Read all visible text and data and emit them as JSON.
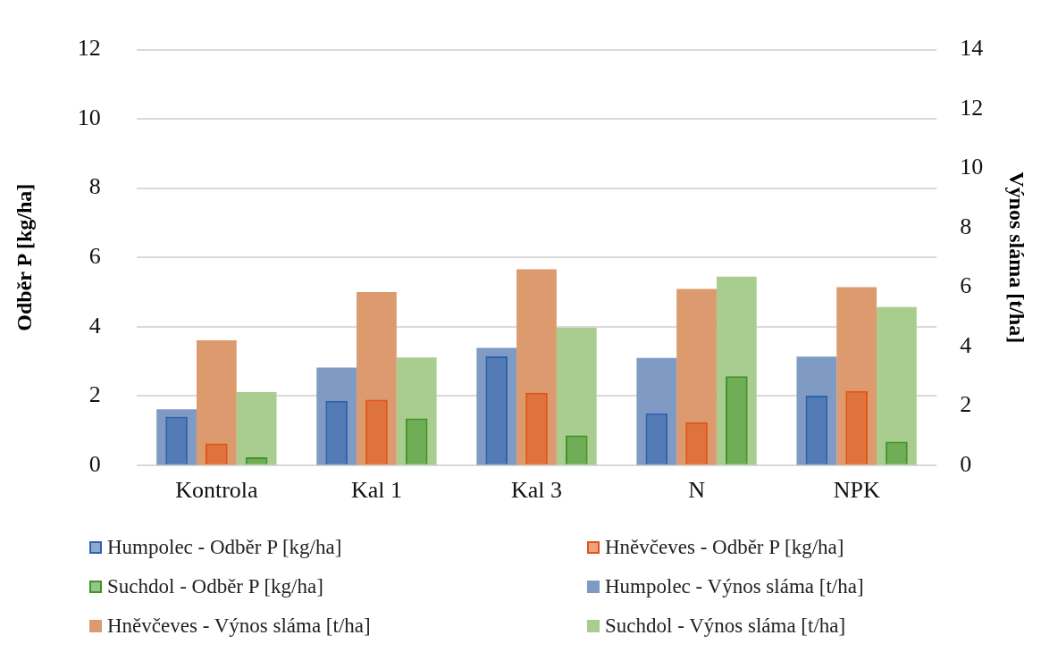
{
  "chart_data": {
    "type": "bar",
    "ylabel": "Odběr P [kg/ha]",
    "y2label": "Výnos sláma [t/ha]",
    "categories": [
      "Kontrola",
      "Kal 1",
      "Kal 3",
      "N",
      "NPK"
    ],
    "series": [
      {
        "name": "Humpolec - Odběr P [kg/ha]",
        "color": "#2f62ad",
        "values": [
          1.4,
          1.86,
          3.14,
          1.5,
          2.01
        ]
      },
      {
        "name": "Hněvčeves - Odběr P [kg/ha]",
        "color": "#e05418",
        "values": [
          0.63,
          1.89,
          2.09,
          1.24,
          2.14
        ]
      },
      {
        "name": "Suchdol - Odběr P [kg/ha]",
        "color": "#3f9428",
        "values": [
          0.23,
          1.35,
          0.86,
          2.57,
          0.68
        ]
      },
      {
        "name": "Humpolec - Výnos sláma [t/ha]",
        "color": "#7f9bc4",
        "axis": "y2",
        "values": [
          1.88,
          3.29,
          3.95,
          3.61,
          3.66
        ]
      },
      {
        "name": "Hněvčeves - Výnos sláma [t/ha]",
        "color": "#dd9a6e",
        "axis": "y2",
        "values": [
          4.21,
          5.83,
          6.6,
          5.94,
          6.0
        ]
      },
      {
        "name": "Suchdol - Výnos sláma [t/ha]",
        "color": "#a9cd8f",
        "axis": "y2",
        "values": [
          2.46,
          3.63,
          4.63,
          6.35,
          5.33
        ]
      }
    ],
    "ylim": [
      0,
      12
    ],
    "yticks": [
      0,
      2,
      4,
      6,
      8,
      10,
      12
    ],
    "y2lim": [
      0,
      14
    ],
    "y2ticks": [
      0,
      2,
      4,
      6,
      8,
      10,
      12,
      14
    ],
    "grid": "y",
    "legend": "bottom"
  }
}
